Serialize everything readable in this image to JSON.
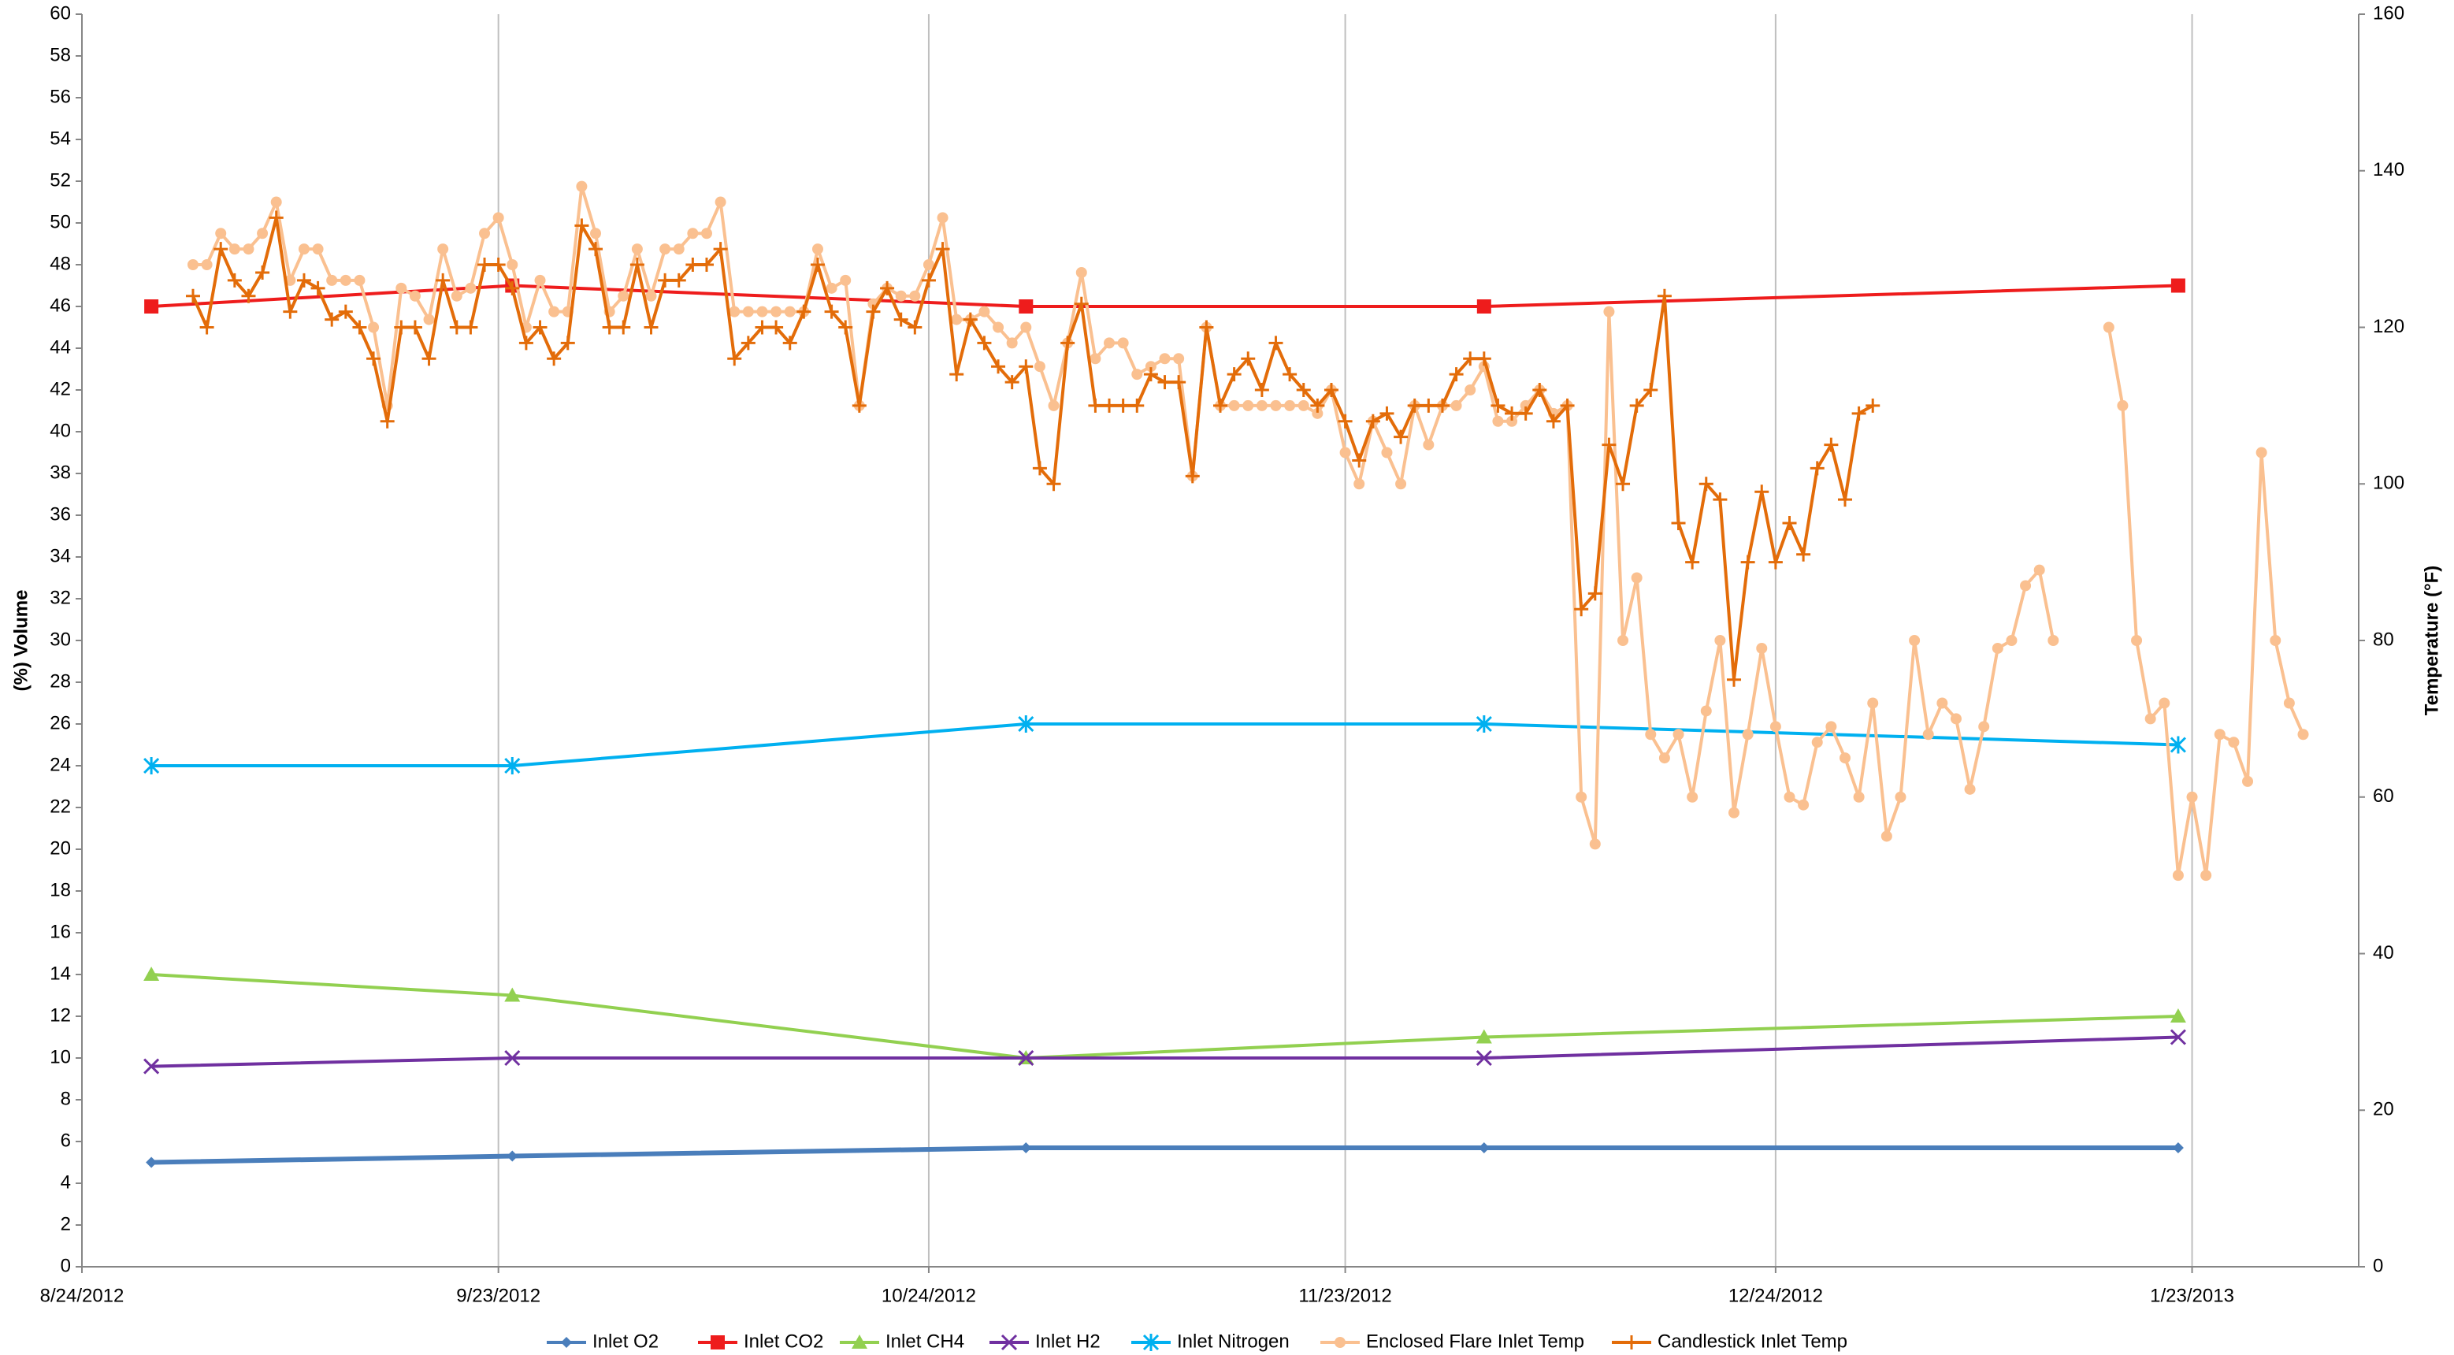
{
  "chart_data": {
    "type": "line",
    "y_label": "(%) Volume",
    "y2_label": "Temperature (°F)",
    "xlim": [
      "8/24/2012",
      "2/4/2013"
    ],
    "xticks": [
      "8/24/2012",
      "9/23/2012",
      "10/24/2012",
      "11/23/2012",
      "12/24/2012",
      "1/23/2013"
    ],
    "ylim": [
      0,
      60
    ],
    "yticks": [
      0,
      2,
      4,
      6,
      8,
      10,
      12,
      14,
      16,
      18,
      20,
      22,
      24,
      26,
      28,
      30,
      32,
      34,
      36,
      38,
      40,
      42,
      44,
      46,
      48,
      50,
      52,
      54,
      56,
      58,
      60
    ],
    "y2lim": [
      0,
      160
    ],
    "y2ticks": [
      0,
      20,
      40,
      60,
      80,
      100,
      120,
      140,
      160
    ],
    "grid": "x",
    "legend": "bottom",
    "x": [
      "9/1/2012",
      "9/2/2012",
      "9/3/2012",
      "9/4/2012",
      "9/5/2012",
      "9/6/2012",
      "9/7/2012",
      "9/8/2012",
      "9/9/2012",
      "9/10/2012",
      "9/11/2012",
      "9/12/2012",
      "9/13/2012",
      "9/14/2012",
      "9/15/2012",
      "9/16/2012",
      "9/17/2012",
      "9/18/2012",
      "9/19/2012",
      "9/20/2012",
      "9/21/2012",
      "9/22/2012",
      "9/23/2012",
      "9/24/2012",
      "9/25/2012",
      "9/26/2012",
      "9/27/2012",
      "9/28/2012",
      "9/29/2012",
      "9/30/2012",
      "10/1/2012",
      "10/2/2012",
      "10/3/2012",
      "10/4/2012",
      "10/5/2012",
      "10/6/2012",
      "10/7/2012",
      "10/8/2012",
      "10/9/2012",
      "10/10/2012",
      "10/11/2012",
      "10/12/2012",
      "10/13/2012",
      "10/14/2012",
      "10/15/2012",
      "10/16/2012",
      "10/17/2012",
      "10/18/2012",
      "10/19/2012",
      "10/20/2012",
      "10/21/2012",
      "10/22/2012",
      "10/23/2012",
      "10/24/2012",
      "10/25/2012",
      "10/26/2012",
      "10/27/2012",
      "10/28/2012",
      "10/29/2012",
      "10/30/2012",
      "10/31/2012",
      "11/1/2012",
      "11/2/2012",
      "11/3/2012",
      "11/4/2012",
      "11/5/2012",
      "11/6/2012",
      "11/7/2012",
      "11/8/2012",
      "11/9/2012",
      "11/10/2012",
      "11/11/2012",
      "11/12/2012",
      "11/13/2012",
      "11/14/2012",
      "11/15/2012",
      "11/16/2012",
      "11/17/2012",
      "11/18/2012",
      "11/19/2012",
      "11/20/2012",
      "11/21/2012",
      "11/22/2012",
      "11/23/2012",
      "11/24/2012",
      "11/25/2012",
      "11/26/2012",
      "11/27/2012",
      "11/28/2012",
      "11/29/2012",
      "11/30/2012",
      "12/1/2012",
      "12/2/2012",
      "12/3/2012",
      "12/4/2012",
      "12/5/2012",
      "12/6/2012",
      "12/7/2012",
      "12/8/2012",
      "12/9/2012",
      "12/10/2012",
      "12/11/2012",
      "12/12/2012",
      "12/13/2012",
      "12/14/2012",
      "12/15/2012",
      "12/16/2012",
      "12/17/2012",
      "12/18/2012",
      "12/19/2012",
      "12/20/2012",
      "12/21/2012",
      "12/22/2012",
      "12/23/2012",
      "12/24/2012",
      "12/25/2012",
      "12/26/2012",
      "12/27/2012",
      "12/28/2012",
      "12/29/2012",
      "12/30/2012",
      "12/31/2012",
      "1/1/2013",
      "1/2/2013",
      "1/3/2013",
      "1/4/2013",
      "1/5/2013",
      "1/6/2013",
      "1/7/2013",
      "1/8/2013",
      "1/9/2013",
      "1/10/2013",
      "1/11/2013",
      "1/12/2013",
      "1/13/2013",
      "1/14/2013",
      "1/15/2013",
      "1/16/2013",
      "1/17/2013",
      "1/18/2013",
      "1/19/2013",
      "1/20/2013",
      "1/21/2013",
      "1/22/2013",
      "1/23/2013",
      "1/24/2013",
      "1/25/2013",
      "1/26/2013",
      "1/27/2013",
      "1/28/2013",
      "1/29/2013",
      "1/30/2013",
      "1/31/2013"
    ],
    "series": [
      {
        "name": "Inlet O2",
        "color": "#4a7ebb",
        "marker": "diamond",
        "x": [
          "8/29/2012",
          "9/24/2012",
          "10/31/2012",
          "12/3/2012",
          "1/22/2013"
        ],
        "values": [
          5,
          5.3,
          5.7,
          5.7,
          5.7
        ]
      },
      {
        "name": "Inlet CO2",
        "color": "#ee1c1c",
        "marker": "square",
        "x": [
          "8/29/2012",
          "9/24/2012",
          "10/31/2012",
          "12/3/2012",
          "1/22/2013"
        ],
        "values": [
          46,
          47,
          46,
          46,
          47
        ]
      },
      {
        "name": "Inlet CH4",
        "color": "#92d050",
        "marker": "triangle",
        "x": [
          "8/29/2012",
          "9/24/2012",
          "10/31/2012",
          "12/3/2012",
          "1/22/2013"
        ],
        "values": [
          14,
          13,
          10,
          11,
          12
        ]
      },
      {
        "name": "Inlet H2",
        "color": "#7030a0",
        "marker": "cross",
        "x": [
          "8/29/2012",
          "9/24/2012",
          "10/31/2012",
          "12/3/2012",
          "1/22/2013"
        ],
        "values": [
          9.6,
          10,
          10,
          10,
          11
        ]
      },
      {
        "name": "Inlet Nitrogen",
        "color": "#00b0f0",
        "marker": "star",
        "x": [
          "8/29/2012",
          "9/24/2012",
          "10/31/2012",
          "12/3/2012",
          "1/22/2013"
        ],
        "values": [
          24,
          24,
          26,
          26,
          25
        ]
      },
      {
        "name": "Enclosed Flare Inlet Temp",
        "color": "#fac090",
        "marker": "circle",
        "axis": "y2",
        "values": [
          128,
          128,
          132,
          130,
          130,
          132,
          136,
          126,
          130,
          130,
          126,
          126,
          126,
          120,
          110,
          125,
          124,
          121,
          130,
          124,
          125,
          132,
          134,
          128,
          120,
          126,
          122,
          122,
          138,
          132,
          122,
          124,
          130,
          124,
          130,
          130,
          132,
          132,
          136,
          122,
          122,
          122,
          122,
          122,
          122,
          130,
          125,
          126,
          110,
          123,
          125,
          124,
          124,
          128,
          134,
          121,
          121,
          122,
          120,
          118,
          120,
          115,
          110,
          118,
          127,
          116,
          118,
          118,
          114,
          115,
          116,
          116,
          101,
          120,
          110,
          110,
          110,
          110,
          110,
          110,
          110,
          109,
          112,
          104,
          100,
          108,
          104,
          100,
          110,
          105,
          110,
          110,
          112,
          115,
          108,
          108,
          110,
          112,
          109,
          110,
          60,
          54,
          122,
          80,
          88,
          68,
          65,
          68,
          60,
          71,
          80,
          58,
          68,
          79,
          69,
          60,
          59,
          67,
          69,
          65,
          60,
          72,
          55,
          60,
          80,
          68,
          72,
          70,
          61,
          69,
          79,
          80,
          87,
          89,
          80,
          null,
          null,
          null,
          120,
          110,
          80,
          70,
          72,
          50,
          60,
          50,
          68,
          67,
          62,
          104,
          80,
          72,
          68
        ]
      },
      {
        "name": "Candlestick Inlet Temp",
        "color": "#e36c09",
        "marker": "plus",
        "axis": "y2",
        "values": [
          124,
          120,
          130,
          126,
          124,
          127,
          134,
          122,
          126,
          125,
          121,
          122,
          120,
          116,
          108,
          120,
          120,
          116,
          126,
          120,
          120,
          128,
          128,
          125,
          118,
          120,
          116,
          118,
          133,
          130,
          120,
          120,
          128,
          120,
          126,
          126,
          128,
          128,
          130,
          116,
          118,
          120,
          120,
          118,
          122,
          128,
          122,
          120,
          110,
          122,
          125,
          121,
          120,
          126,
          130,
          114,
          121,
          118,
          115,
          113,
          115,
          102,
          100,
          118,
          123,
          110,
          110,
          110,
          110,
          114,
          113,
          113,
          101,
          120,
          110,
          114,
          116,
          112,
          118,
          114,
          112,
          110,
          112,
          108,
          103,
          108,
          109,
          106,
          110,
          110,
          110,
          114,
          116,
          116,
          110,
          109,
          109,
          112,
          108,
          110,
          84,
          86,
          105,
          100,
          110,
          112,
          124,
          95,
          90,
          100,
          98,
          75,
          90,
          99,
          90,
          95,
          91,
          102,
          105,
          98,
          109,
          110,
          null,
          null,
          null,
          null,
          null,
          null,
          null,
          null,
          null,
          null,
          null,
          null,
          null,
          null,
          null,
          null,
          null,
          null,
          null,
          null,
          null,
          null,
          null,
          null,
          null,
          null,
          null,
          null,
          null,
          null,
          null
        ]
      }
    ]
  }
}
